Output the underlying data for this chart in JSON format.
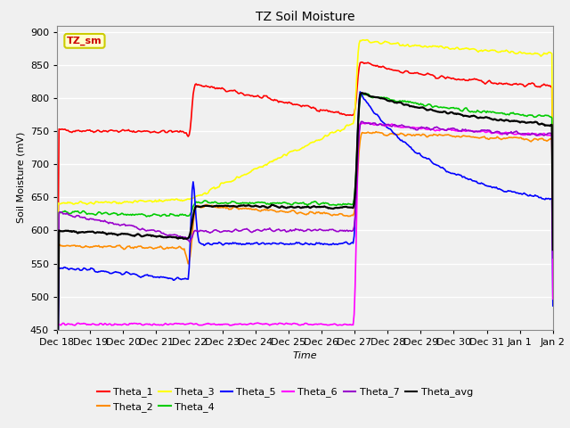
{
  "title": "TZ Soil Moisture",
  "xlabel": "Time",
  "ylabel": "Soil Moisture (mV)",
  "ylim": [
    450,
    910
  ],
  "yticks": [
    450,
    500,
    550,
    600,
    650,
    700,
    750,
    800,
    850,
    900
  ],
  "series_colors": {
    "Theta_1": "#ff0000",
    "Theta_2": "#ff8c00",
    "Theta_3": "#ffff00",
    "Theta_4": "#00cc00",
    "Theta_5": "#0000ff",
    "Theta_6": "#ff00ff",
    "Theta_7": "#9900cc",
    "Theta_avg": "#000000"
  },
  "bg_color": "#f0f0f0",
  "plot_bg": "#f0f0f0",
  "grid_color": "#ffffff",
  "legend_label": "TZ_sm",
  "tz_label_color": "#cc0000",
  "tz_box_facecolor": "#ffffcc",
  "tz_box_edgecolor": "#cccc00"
}
